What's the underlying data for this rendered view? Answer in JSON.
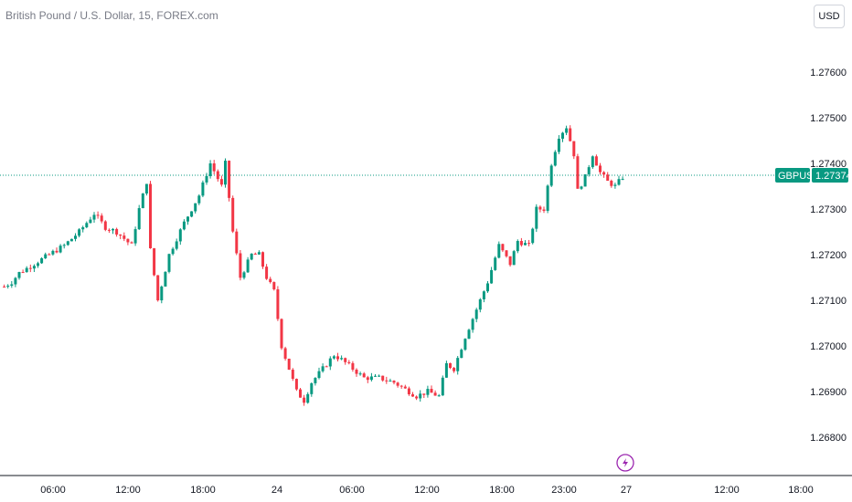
{
  "header": {
    "title": "British Pound / U.S. Dollar, 15, FOREX.com",
    "currency_button": "USD"
  },
  "price_tag": {
    "symbol": "GBPUSD",
    "price": "1.27374",
    "color": "#089981"
  },
  "colors": {
    "up": "#089981",
    "down": "#f23645",
    "event_icon": "#9c27b0"
  },
  "icons": {
    "event": "lightning-icon"
  },
  "chart_data": {
    "type": "candlestick",
    "y_ticks": [
      "1.27600",
      "1.27500",
      "1.27400",
      "1.27300",
      "1.27200",
      "1.27100",
      "1.27000",
      "1.26900",
      "1.26800"
    ],
    "x_ticks": [
      "06:00",
      "12:00",
      "18:00",
      "24",
      "06:00",
      "12:00",
      "18:00",
      "23:00",
      "27",
      "12:00",
      "18:00"
    ],
    "ylim": [
      1.2678,
      1.2765
    ],
    "last_price": 1.27374,
    "grid": false,
    "close_path": [
      [
        0,
        1.2713
      ],
      [
        2,
        1.2714
      ],
      [
        4,
        1.2716
      ],
      [
        8,
        1.2718
      ],
      [
        12,
        1.272
      ],
      [
        16,
        1.2722
      ],
      [
        20,
        1.2725
      ],
      [
        24,
        1.2729
      ],
      [
        27,
        1.2726
      ],
      [
        30,
        1.2725
      ],
      [
        34,
        1.2722
      ],
      [
        36,
        1.273
      ],
      [
        38,
        1.2736
      ],
      [
        39,
        1.2721
      ],
      [
        41,
        1.271
      ],
      [
        44,
        1.272
      ],
      [
        48,
        1.2727
      ],
      [
        52,
        1.2733
      ],
      [
        55,
        1.274
      ],
      [
        58,
        1.2735
      ],
      [
        59,
        1.274
      ],
      [
        61,
        1.2725
      ],
      [
        63,
        1.2715
      ],
      [
        66,
        1.272
      ],
      [
        68,
        1.272
      ],
      [
        70,
        1.2715
      ],
      [
        72,
        1.2712
      ],
      [
        74,
        1.27
      ],
      [
        76,
        1.2695
      ],
      [
        78,
        1.269
      ],
      [
        80,
        1.2688
      ],
      [
        82,
        1.2692
      ],
      [
        85,
        1.2695
      ],
      [
        88,
        1.2698
      ],
      [
        90,
        1.2697
      ],
      [
        93,
        1.2695
      ],
      [
        96,
        1.2693
      ],
      [
        100,
        1.2693
      ],
      [
        104,
        1.2692
      ],
      [
        108,
        1.269
      ],
      [
        110,
        1.2689
      ],
      [
        113,
        1.269
      ],
      [
        116,
        1.2689
      ],
      [
        118,
        1.2696
      ],
      [
        120,
        1.2695
      ],
      [
        123,
        1.2702
      ],
      [
        126,
        1.2708
      ],
      [
        129,
        1.2714
      ],
      [
        132,
        1.2722
      ],
      [
        135,
        1.2718
      ],
      [
        137,
        1.2723
      ],
      [
        140,
        1.2722
      ],
      [
        142,
        1.273
      ],
      [
        144,
        1.273
      ],
      [
        146,
        1.274
      ],
      [
        148,
        1.2746
      ],
      [
        150,
        1.2748
      ],
      [
        152,
        1.2742
      ],
      [
        153,
        1.2734
      ],
      [
        155,
        1.2737
      ],
      [
        157,
        1.2742
      ],
      [
        159,
        1.2738
      ],
      [
        161,
        1.2736
      ],
      [
        163,
        1.2735
      ],
      [
        165,
        1.2737
      ]
    ]
  }
}
